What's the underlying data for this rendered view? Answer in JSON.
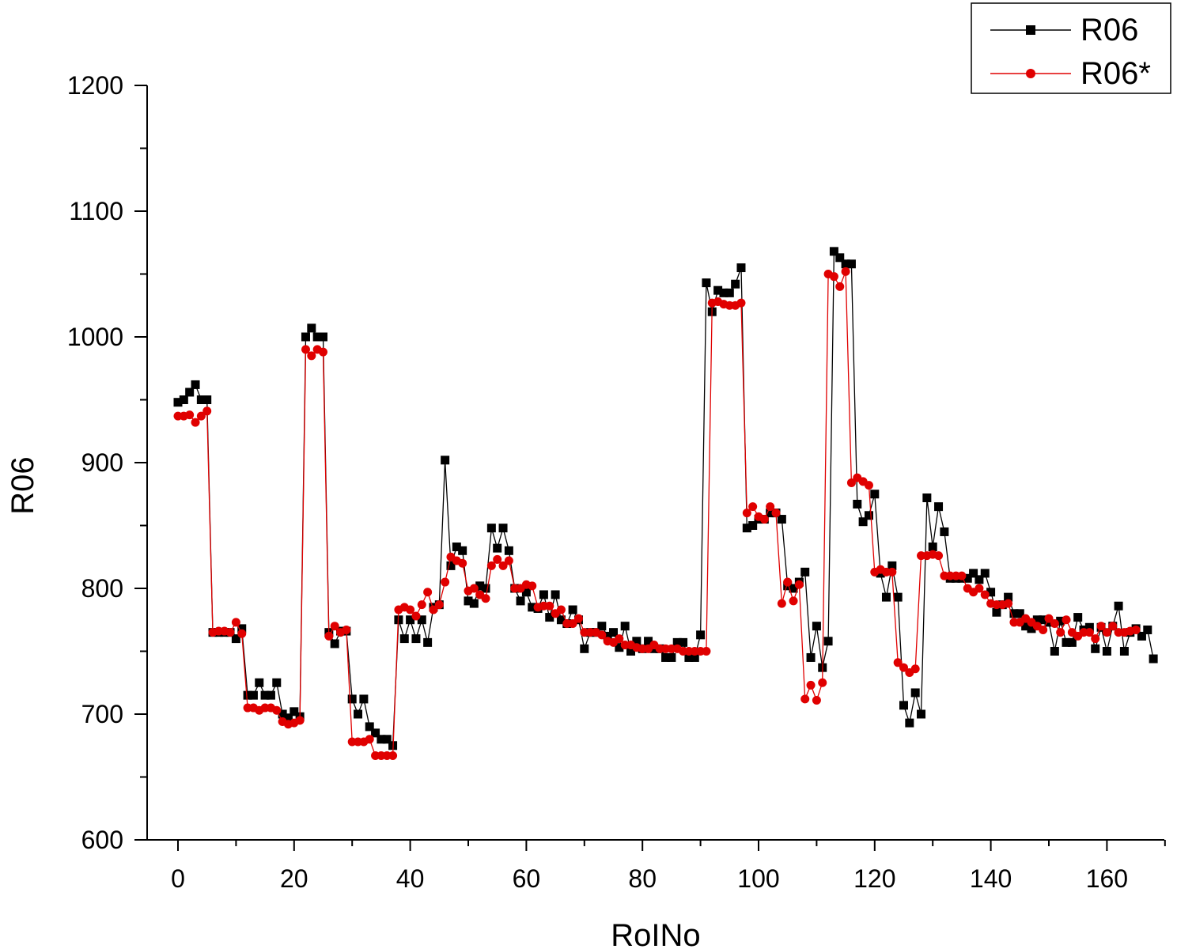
{
  "chart_data": {
    "type": "line",
    "title": "",
    "xlabel": "RoINo",
    "ylabel": "R06",
    "xlim": [
      -5,
      170
    ],
    "ylim": [
      600,
      1200
    ],
    "xticks": [
      0,
      20,
      40,
      60,
      80,
      100,
      120,
      140,
      160
    ],
    "xtick_labels": [
      "0",
      "20",
      "40",
      "60",
      "80",
      "100",
      "120",
      "140",
      "160"
    ],
    "yticks": [
      600,
      700,
      800,
      900,
      1000,
      1100,
      1200
    ],
    "ytick_labels": [
      "600",
      "700",
      "800",
      "900",
      "1000",
      "1100",
      "1200"
    ],
    "legend_position": "top-right",
    "series": [
      {
        "name": "R06",
        "color": "#000000",
        "marker": "square",
        "values": [
          948,
          950,
          956,
          962,
          950,
          950,
          765,
          765,
          765,
          765,
          760,
          768,
          715,
          715,
          725,
          715,
          715,
          725,
          700,
          697,
          702,
          698,
          1000,
          1007,
          1000,
          1000,
          765,
          756,
          766,
          766,
          712,
          700,
          712,
          690,
          685,
          680,
          680,
          675,
          775,
          760,
          775,
          760,
          775,
          757,
          785,
          787,
          902,
          818,
          833,
          830,
          790,
          788,
          802,
          800,
          848,
          832,
          848,
          830,
          800,
          790,
          797,
          785,
          784,
          795,
          777,
          795,
          775,
          772,
          783,
          775,
          752,
          765,
          765,
          770,
          762,
          765,
          753,
          770,
          750,
          758,
          752,
          758,
          752,
          752,
          745,
          745,
          757,
          757,
          745,
          745,
          763,
          1043,
          1020,
          1037,
          1035,
          1035,
          1042,
          1055,
          848,
          850,
          855,
          855,
          860,
          860,
          855,
          802,
          800,
          805,
          813,
          745,
          770,
          737,
          758,
          1068,
          1063,
          1058,
          1058,
          867,
          853,
          858,
          875,
          812,
          793,
          818,
          793,
          707,
          693,
          717,
          700,
          872,
          833,
          865,
          845,
          808,
          808,
          808,
          808,
          812,
          807,
          812,
          797,
          781,
          787,
          793,
          780,
          780,
          770,
          768,
          775,
          775,
          773,
          750,
          774,
          757,
          757,
          777,
          767,
          769,
          752,
          769,
          750,
          770,
          786,
          750,
          765,
          768,
          762,
          767,
          744
        ]
      },
      {
        "name": "R06*",
        "color": "#e00000",
        "marker": "circle",
        "values": [
          937,
          937,
          938,
          932,
          937,
          941,
          765,
          766,
          766,
          765,
          773,
          764,
          705,
          705,
          703,
          705,
          705,
          703,
          694,
          692,
          693,
          695,
          990,
          985,
          990,
          988,
          762,
          770,
          765,
          767,
          678,
          678,
          678,
          680,
          667,
          667,
          667,
          667,
          783,
          785,
          783,
          778,
          787,
          797,
          783,
          787,
          805,
          825,
          822,
          820,
          798,
          800,
          795,
          792,
          818,
          823,
          818,
          822,
          800,
          800,
          803,
          802,
          785,
          786,
          786,
          780,
          783,
          772,
          772,
          776,
          765,
          765,
          765,
          763,
          758,
          757,
          760,
          755,
          755,
          753,
          752,
          752,
          755,
          752,
          752,
          752,
          752,
          750,
          750,
          750,
          750,
          750,
          1027,
          1028,
          1026,
          1025,
          1025,
          1027,
          860,
          865,
          857,
          855,
          865,
          860,
          788,
          805,
          790,
          803,
          712,
          723,
          711,
          725,
          1050,
          1048,
          1040,
          1052,
          884,
          888,
          885,
          882,
          813,
          815,
          813,
          813,
          741,
          737,
          733,
          736,
          826,
          826,
          827,
          826,
          810,
          810,
          810,
          810,
          800,
          797,
          800,
          795,
          788,
          787,
          787,
          788,
          773,
          773,
          776,
          773,
          770,
          767,
          776,
          772,
          765,
          775,
          765,
          762,
          765,
          765,
          760,
          770,
          765,
          770,
          765,
          765,
          766,
          767
        ]
      }
    ]
  }
}
